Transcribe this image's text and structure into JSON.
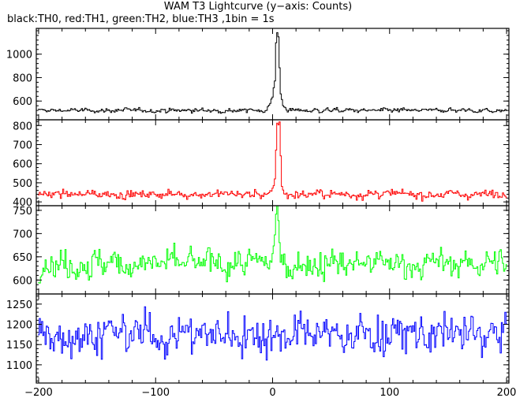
{
  "title": "WAM T3 Lightcurve (y−axis: Counts)",
  "subtitle": "black:TH0, red:TH1, green:TH2, blue:TH3 ,1bin = 1s",
  "chart_data": {
    "type": "line",
    "x": {
      "start": -200,
      "end": 200,
      "step": 1,
      "ticks": [
        -200,
        -100,
        0,
        100,
        200
      ]
    },
    "xlim": [
      -202,
      202
    ],
    "series": [
      {
        "name": "TH0",
        "color": "#000000",
        "baseline": 520,
        "noise": 15,
        "ylim": [
          440,
          1220
        ],
        "yticks": [
          600,
          800,
          1000
        ],
        "peak": [
          [
            -6,
            520
          ],
          [
            -3,
            560
          ],
          [
            0,
            640
          ],
          [
            2,
            780
          ],
          [
            3,
            1100
          ],
          [
            4,
            1180
          ],
          [
            5,
            1150
          ],
          [
            6,
            880
          ],
          [
            7,
            660
          ],
          [
            9,
            560
          ],
          [
            12,
            530
          ]
        ]
      },
      {
        "name": "TH1",
        "color": "#ff0000",
        "baseline": 440,
        "noise": 18,
        "ylim": [
          380,
          830
        ],
        "yticks": [
          400,
          500,
          600,
          700,
          800
        ],
        "peak": [
          [
            -4,
            440
          ],
          [
            0,
            470
          ],
          [
            2,
            520
          ],
          [
            3,
            680
          ],
          [
            4,
            820
          ],
          [
            5,
            800
          ],
          [
            6,
            820
          ],
          [
            7,
            640
          ],
          [
            8,
            480
          ],
          [
            10,
            445
          ]
        ]
      },
      {
        "name": "TH2",
        "color": "#00ff00",
        "baseline": 635,
        "noise": 25,
        "ylim": [
          570,
          760
        ],
        "yticks": [
          600,
          650,
          700,
          750
        ],
        "peak": [
          [
            -2,
            635
          ],
          [
            1,
            660
          ],
          [
            3,
            740
          ],
          [
            4,
            760
          ],
          [
            5,
            720
          ],
          [
            7,
            650
          ]
        ]
      },
      {
        "name": "TH3",
        "color": "#0000ff",
        "baseline": 1175,
        "noise": 40,
        "ylim": [
          1055,
          1275
        ],
        "yticks": [
          1100,
          1150,
          1200,
          1250
        ],
        "peak": []
      }
    ]
  }
}
